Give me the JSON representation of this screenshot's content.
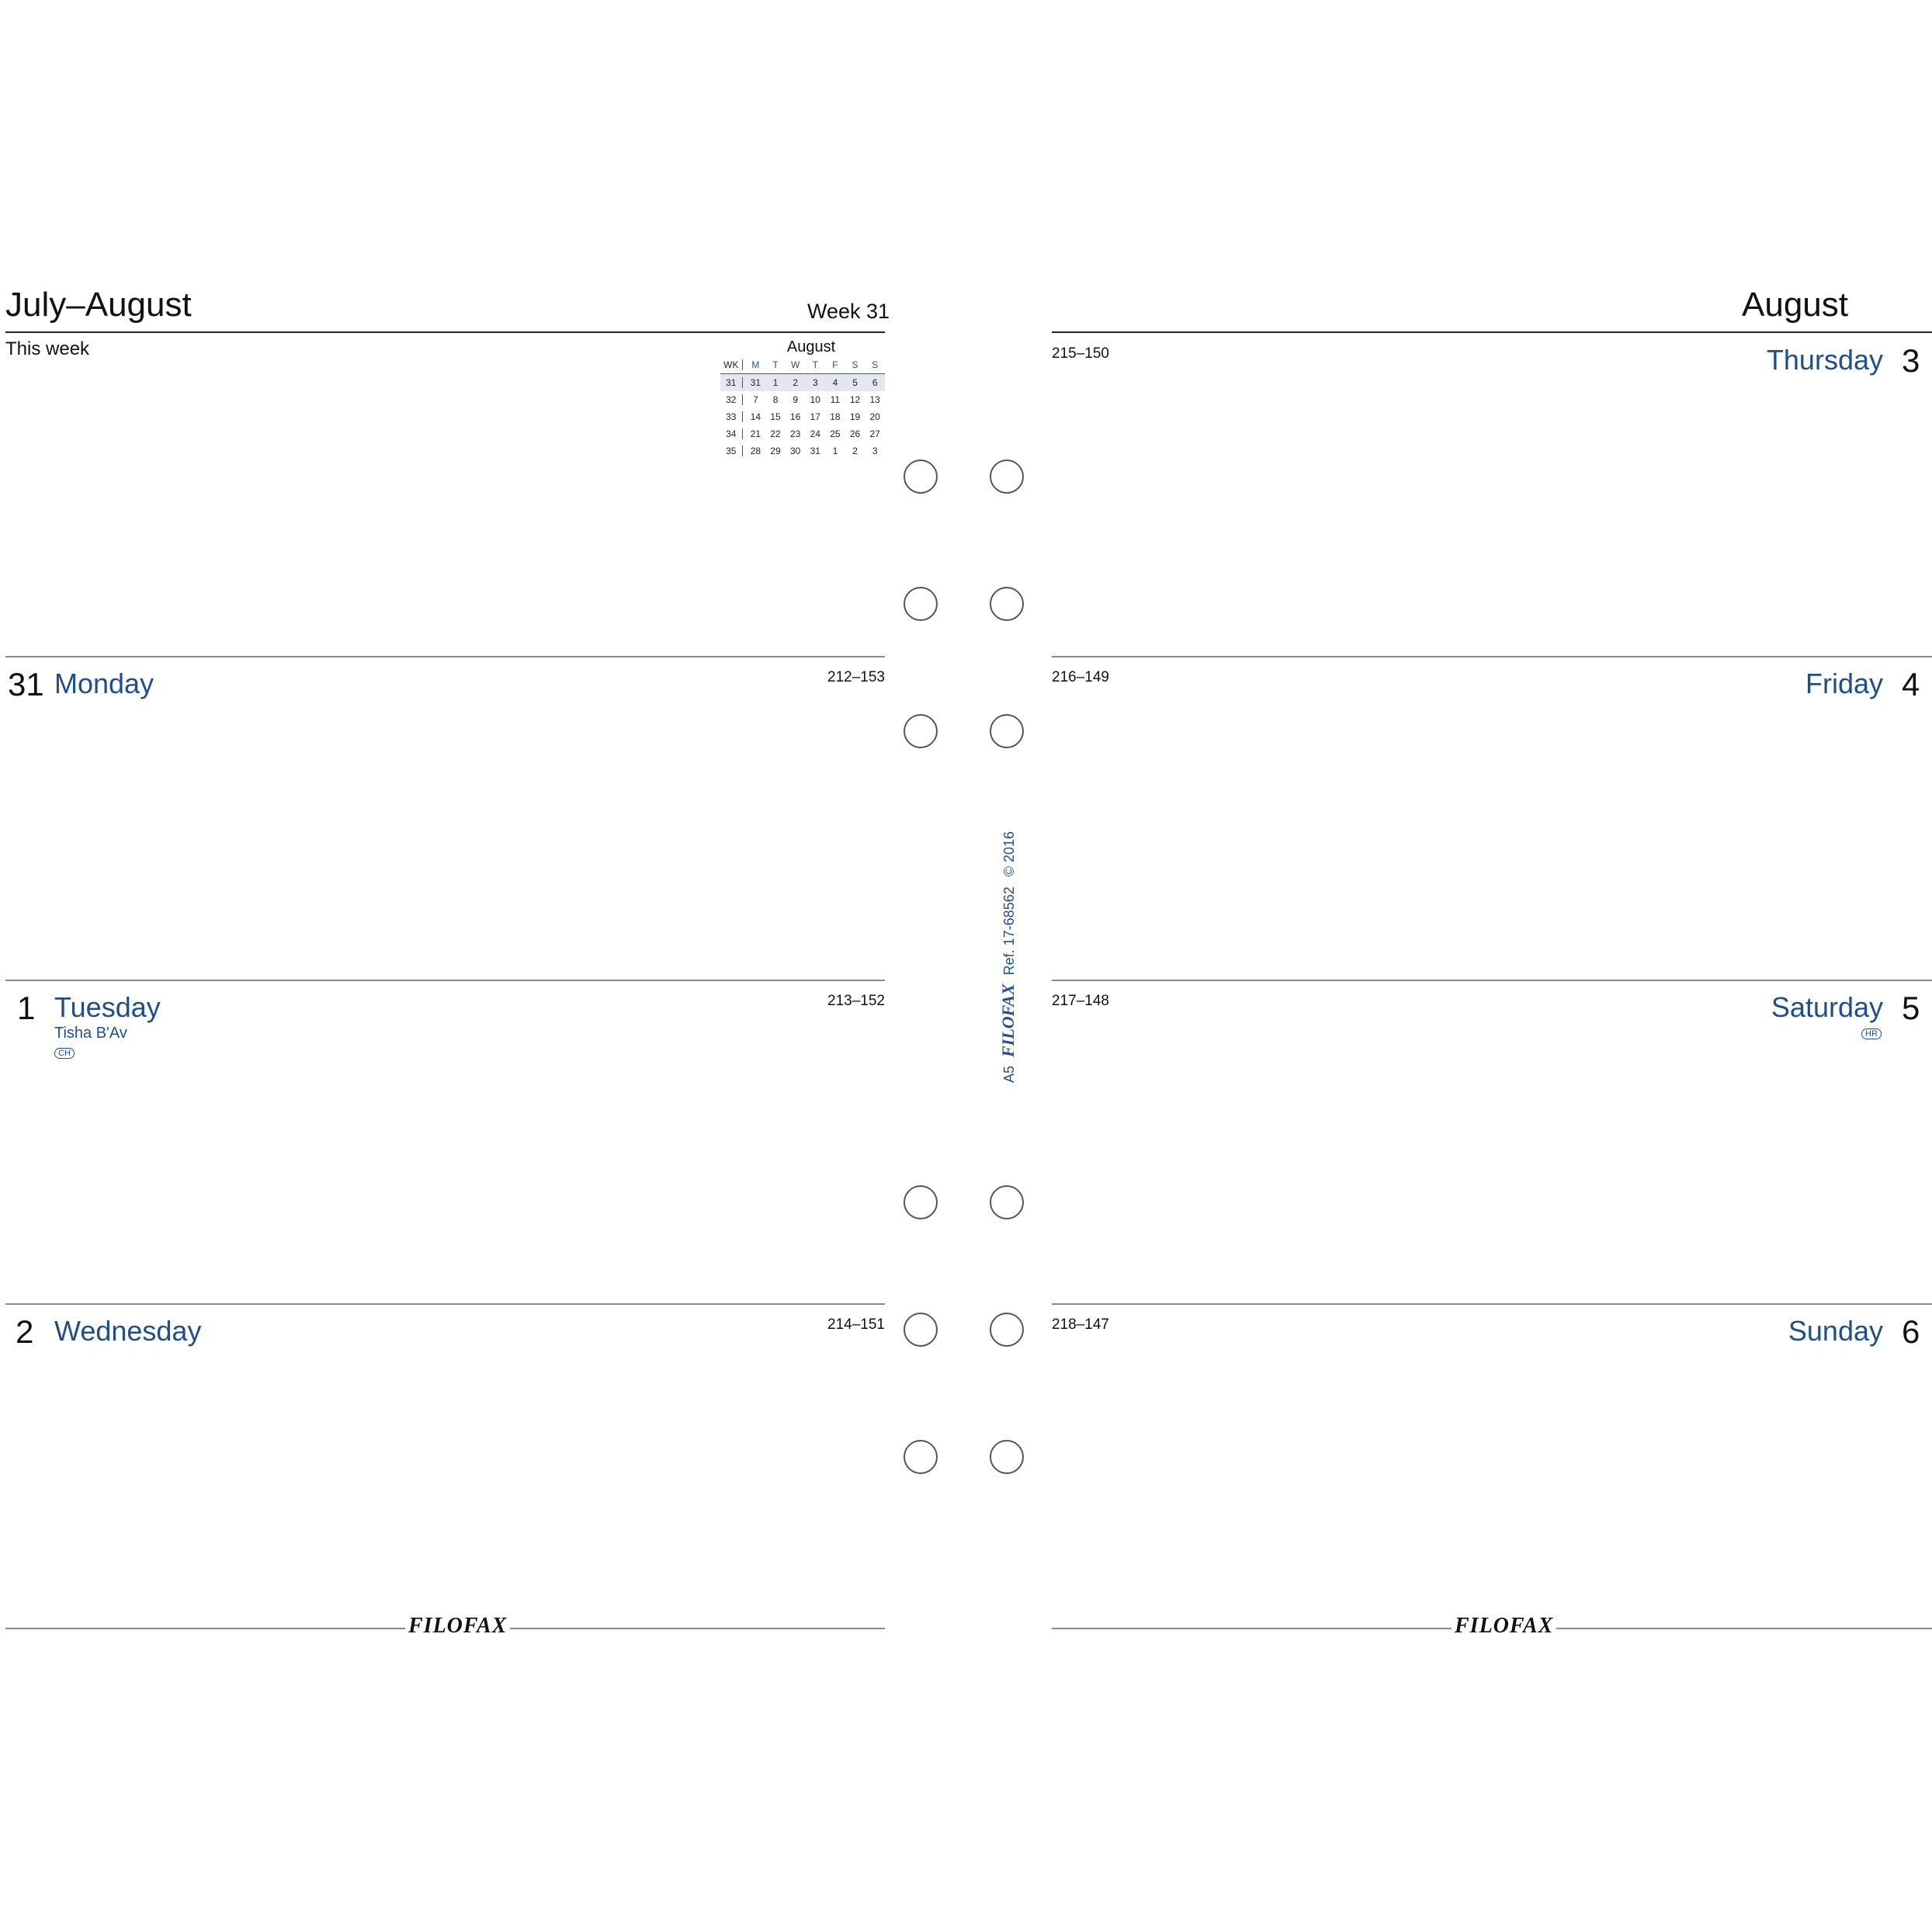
{
  "left_page": {
    "title": "July–August",
    "week": "Week 31",
    "this_week": "This week",
    "mini_calendar": {
      "month": "August",
      "headers": [
        "WK",
        "M",
        "T",
        "W",
        "T",
        "F",
        "S",
        "S"
      ],
      "rows": [
        [
          "31",
          "31",
          "1",
          "2",
          "3",
          "4",
          "5",
          "6"
        ],
        [
          "32",
          "7",
          "8",
          "9",
          "10",
          "11",
          "12",
          "13"
        ],
        [
          "33",
          "14",
          "15",
          "16",
          "17",
          "18",
          "19",
          "20"
        ],
        [
          "34",
          "21",
          "22",
          "23",
          "24",
          "25",
          "26",
          "27"
        ],
        [
          "35",
          "28",
          "29",
          "30",
          "31",
          "1",
          "2",
          "3"
        ]
      ]
    },
    "days": [
      {
        "num": "31",
        "name": "Monday",
        "code": "212–153"
      },
      {
        "num": "1",
        "name": "Tuesday",
        "code": "213–152",
        "note": "Tisha B'Av",
        "badge": "CH"
      },
      {
        "num": "2",
        "name": "Wednesday",
        "code": "214–151"
      }
    ],
    "footer_logo": "FILOFAX"
  },
  "right_page": {
    "title": "August",
    "days": [
      {
        "num": "3",
        "name": "Thursday",
        "code": "215–150"
      },
      {
        "num": "4",
        "name": "Friday",
        "code": "216–149"
      },
      {
        "num": "5",
        "name": "Saturday",
        "code": "217–148",
        "badge": "HR"
      },
      {
        "num": "6",
        "name": "Sunday",
        "code": "218–147"
      }
    ],
    "footer_logo": "FILOFAX"
  },
  "spine": {
    "size": "A5",
    "brand": "FILOFAX",
    "ref": "Ref. 17-68562",
    "copyright": "© 2016"
  },
  "colors": {
    "accent": "#1f4f8b",
    "text": "#111111",
    "rule": "#222222"
  }
}
